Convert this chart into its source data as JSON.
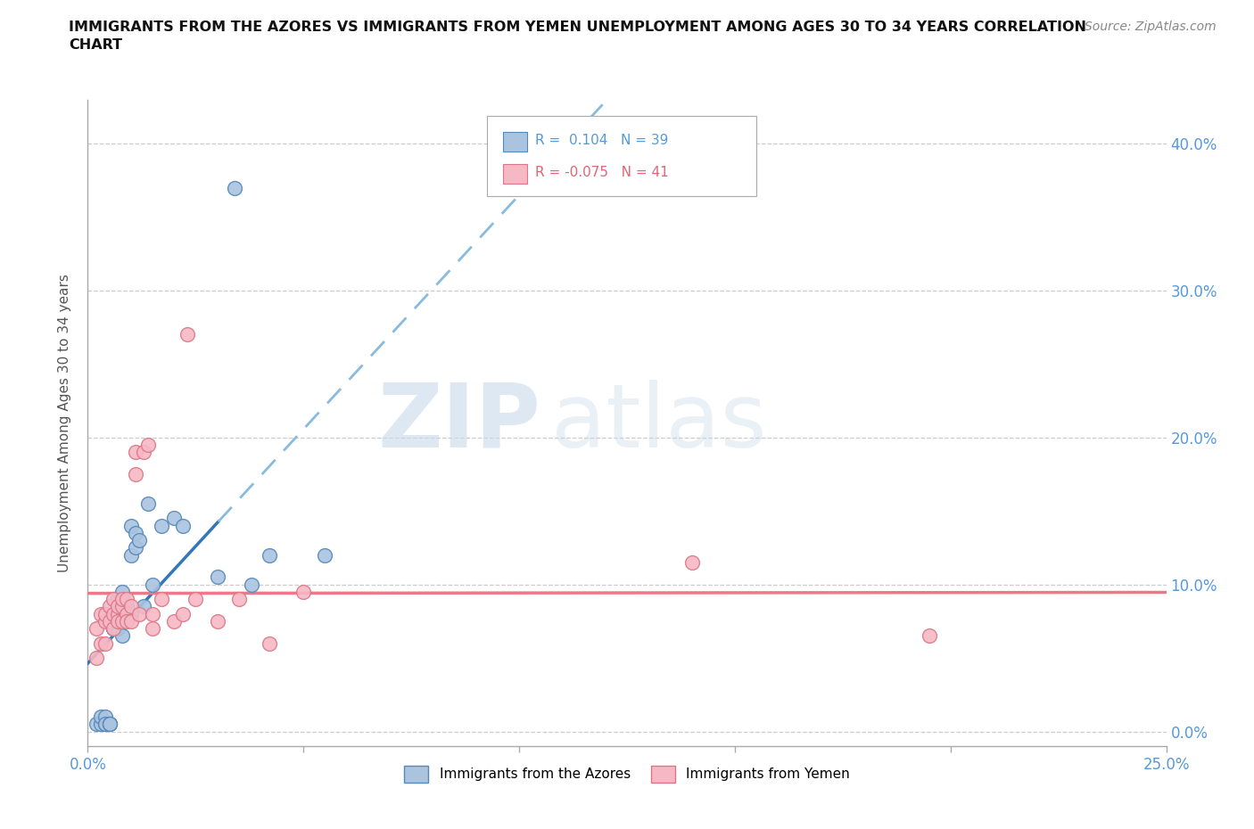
{
  "title": "IMMIGRANTS FROM THE AZORES VS IMMIGRANTS FROM YEMEN UNEMPLOYMENT AMONG AGES 30 TO 34 YEARS CORRELATION\nCHART",
  "source": "Source: ZipAtlas.com",
  "ylabel": "Unemployment Among Ages 30 to 34 years",
  "ytick_values": [
    0.0,
    0.1,
    0.2,
    0.3,
    0.4
  ],
  "xlim": [
    0.0,
    0.25
  ],
  "ylim": [
    -0.01,
    0.43
  ],
  "azores_color": "#aac4e0",
  "azores_edge": "#5588bb",
  "yemen_color": "#f5b8c4",
  "yemen_edge": "#dd7788",
  "azores_R": 0.104,
  "azores_N": 39,
  "yemen_R": -0.075,
  "yemen_N": 41,
  "azores_label": "Immigrants from the Azores",
  "yemen_label": "Immigrants from Yemen",
  "watermark_zip": "ZIP",
  "watermark_atlas": "atlas",
  "trend_blue_color": "#3377bb",
  "trend_pink_color": "#ee7788",
  "grid_color": "#cccccc",
  "bg_color": "#ffffff",
  "title_color": "#111111",
  "tick_color": "#5599dd",
  "azores_x": [
    0.002,
    0.003,
    0.003,
    0.004,
    0.004,
    0.004,
    0.005,
    0.005,
    0.005,
    0.006,
    0.006,
    0.006,
    0.007,
    0.007,
    0.007,
    0.008,
    0.008,
    0.008,
    0.008,
    0.009,
    0.009,
    0.009,
    0.01,
    0.01,
    0.01,
    0.011,
    0.011,
    0.012,
    0.013,
    0.014,
    0.015,
    0.017,
    0.02,
    0.022,
    0.03,
    0.034,
    0.038,
    0.042,
    0.055
  ],
  "azores_y": [
    0.005,
    0.005,
    0.01,
    0.005,
    0.01,
    0.005,
    0.005,
    0.005,
    0.005,
    0.07,
    0.07,
    0.08,
    0.07,
    0.08,
    0.09,
    0.085,
    0.095,
    0.075,
    0.065,
    0.08,
    0.085,
    0.08,
    0.08,
    0.12,
    0.14,
    0.125,
    0.135,
    0.13,
    0.085,
    0.155,
    0.1,
    0.14,
    0.145,
    0.14,
    0.105,
    0.37,
    0.1,
    0.12,
    0.12
  ],
  "yemen_x": [
    0.002,
    0.002,
    0.003,
    0.003,
    0.004,
    0.004,
    0.004,
    0.005,
    0.005,
    0.006,
    0.006,
    0.006,
    0.007,
    0.007,
    0.007,
    0.008,
    0.008,
    0.008,
    0.009,
    0.009,
    0.009,
    0.01,
    0.01,
    0.011,
    0.011,
    0.012,
    0.013,
    0.014,
    0.015,
    0.015,
    0.017,
    0.02,
    0.022,
    0.023,
    0.025,
    0.03,
    0.035,
    0.042,
    0.05,
    0.14,
    0.195
  ],
  "yemen_y": [
    0.05,
    0.07,
    0.08,
    0.06,
    0.06,
    0.075,
    0.08,
    0.075,
    0.085,
    0.09,
    0.07,
    0.08,
    0.08,
    0.075,
    0.085,
    0.085,
    0.09,
    0.075,
    0.08,
    0.09,
    0.075,
    0.085,
    0.075,
    0.19,
    0.175,
    0.08,
    0.19,
    0.195,
    0.07,
    0.08,
    0.09,
    0.075,
    0.08,
    0.27,
    0.09,
    0.075,
    0.09,
    0.06,
    0.095,
    0.115,
    0.065
  ]
}
